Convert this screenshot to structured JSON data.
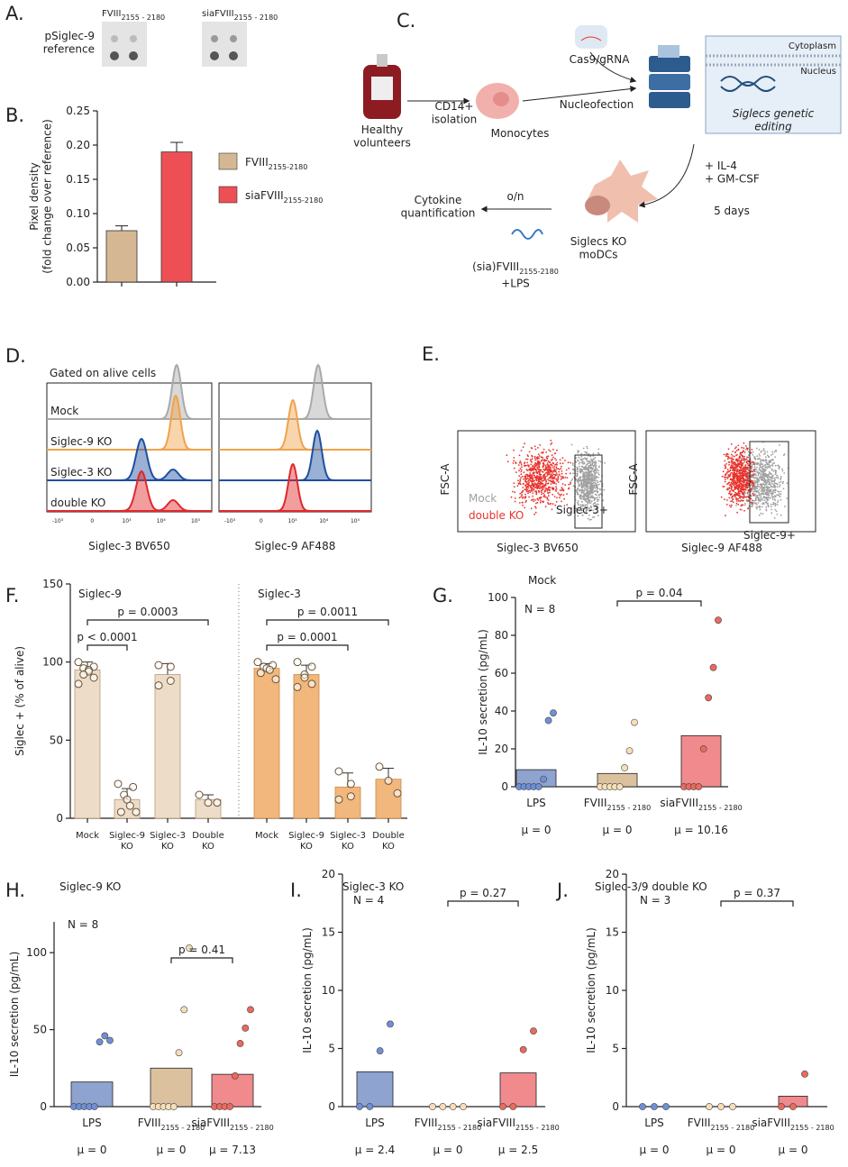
{
  "panel_labels": [
    "A.",
    "B.",
    "C.",
    "D.",
    "E.",
    "F.",
    "G.",
    "H.",
    "I.",
    "J."
  ],
  "blot": {
    "columns": [
      {
        "text": "FVIII",
        "sub": "2155 - 2180"
      },
      {
        "text": "siaFVIII",
        "sub": "2155 - 2180"
      }
    ],
    "rows": [
      "pSiglec-9",
      "reference"
    ]
  },
  "diagram": {
    "healthy": [
      "Healthy",
      "volunteers"
    ],
    "isolation": [
      "CD14+",
      "isolation"
    ],
    "monocytes": "Monocytes",
    "cas9": "Cas9/gRNA",
    "nucleofection": "Nucleofection",
    "cytoplasm": "Cytoplasm",
    "nucleus": "Nucleus",
    "editing": [
      "Siglecs genetic",
      "editing"
    ],
    "cytokines": [
      "+ IL-4",
      "+ GM-CSF"
    ],
    "duration": "5 days",
    "modcs": [
      "Siglecs KO",
      "moDCs"
    ],
    "overnight": "o/n",
    "quantification": [
      "Cytokine",
      "quantification"
    ],
    "stimulus": [
      {
        "text": "(sia)FVIII",
        "sub": "2155-2180"
      },
      "+LPS"
    ]
  },
  "histograms": {
    "title": "Gated on alive cells",
    "rows": [
      "Mock",
      "Siglec-9 KO",
      "Siglec-3 KO",
      "double KO"
    ],
    "x_labels": [
      "Siglec-3 BV650",
      "Siglec-9 AF488"
    ],
    "ticks": [
      "-10³",
      "0",
      "10³",
      "10⁴",
      "10⁵"
    ],
    "colors": [
      "#a9a9a9",
      "#f0a24a",
      "#1f4fa0",
      "#e0282b"
    ]
  },
  "flow": {
    "y_label": "FSC-A",
    "legend": [
      "Mock",
      "double KO"
    ],
    "legend_colors": [
      "#a0a0a0",
      "#e8332d"
    ],
    "gates": [
      "Siglec-3+",
      "Siglec-9+"
    ],
    "x_labels": [
      "Siglec-3 BV650",
      "Siglec-9 AF488"
    ]
  },
  "chart_data": [
    {
      "type": "bar",
      "y_label": [
        "Pixel density",
        "(fold change over reference)"
      ],
      "categories": [
        {
          "text": "FVIII",
          "sub": "2155-2180"
        },
        {
          "text": "siaFVIII",
          "sub": "2155-2180"
        }
      ],
      "values": [
        0.075,
        0.19
      ],
      "errors": [
        0.007,
        0.014
      ],
      "colors": [
        "#d5b893",
        "#ee4f55"
      ],
      "legend": true,
      "ylim": [
        0,
        0.25
      ],
      "yticks": [
        {
          "value": 0,
          "label": "0.00"
        },
        0.05,
        {
          "value": 0.1,
          "label": "0.10"
        },
        0.15,
        {
          "value": 0.2,
          "label": "0.20"
        },
        0.25
      ]
    },
    {
      "type": "grouped_bar",
      "y_label": "Siglec + (% of alive)",
      "ylim": [
        0,
        150
      ],
      "yticks": [
        0,
        50,
        100,
        150
      ],
      "groups": [
        {
          "name": "Siglec-9",
          "color": "#ecdcc8",
          "edge": "#b99a78",
          "categories": [
            [
              "Mock"
            ],
            [
              "Siglec-9",
              "KO"
            ],
            [
              "Siglec-3",
              "KO"
            ],
            [
              "Double",
              "KO"
            ]
          ],
          "values": [
            95,
            12,
            92,
            12
          ],
          "errors": [
            5,
            7,
            7,
            3
          ],
          "points": [
            [
              100,
              97,
              96,
              95,
              94,
              92,
              90,
              86
            ],
            [
              22,
              20,
              15,
              12,
              8,
              4,
              4
            ],
            [
              98,
              97,
              88,
              85
            ],
            [
              15,
              10,
              10
            ]
          ],
          "brackets": [
            {
              "from": 0,
              "to": 1,
              "label": "p < 0.0001"
            },
            {
              "from": 0,
              "to": 3,
              "label": "p = 0.0003"
            }
          ]
        },
        {
          "name": "Siglec-3",
          "color": "#f2b77c",
          "edge": "#c98a48",
          "categories": [
            [
              "Mock"
            ],
            [
              "Siglec-9",
              "KO"
            ],
            [
              "Siglec-3",
              "KO"
            ],
            [
              "Double",
              "KO"
            ]
          ],
          "values": [
            96,
            92,
            20,
            25
          ],
          "errors": [
            3,
            6,
            9,
            7
          ],
          "points": [
            [
              100,
              98,
              97,
              96,
              95,
              93,
              89
            ],
            [
              100,
              97,
              92,
              90,
              86,
              84
            ],
            [
              30,
              22,
              14,
              12
            ],
            [
              33,
              24,
              16
            ]
          ],
          "brackets": [
            {
              "from": 0,
              "to": 2,
              "label": "p = 0.0001"
            },
            {
              "from": 0,
              "to": 3,
              "label": "p = 0.0011"
            }
          ]
        }
      ]
    },
    {
      "type": "dotbar",
      "title": "Mock",
      "y_label": "IL-10 secretion (pg/mL)",
      "n_label": "N = 8",
      "ylim": [
        0,
        100
      ],
      "yticks": [
        0,
        20,
        40,
        60,
        80,
        100
      ],
      "categories": [
        "LPS",
        {
          "text": "FVIII",
          "sub": "2155 - 2180"
        },
        {
          "text": "siaFVIII",
          "sub": "2155 - 2180"
        }
      ],
      "values": [
        9,
        7,
        27
      ],
      "points": [
        [
          0,
          0,
          0,
          0,
          0,
          4,
          35,
          39
        ],
        [
          0,
          0,
          0,
          0,
          0,
          10,
          19,
          34
        ],
        [
          0,
          0,
          0,
          0,
          20,
          47,
          63,
          88
        ]
      ],
      "mu": [
        "μ = 0",
        "μ = 0",
        "μ = 10.16"
      ],
      "bar_colors": [
        "#8ea3cf",
        "#dcc19f",
        "#f08a8d"
      ],
      "point_colors": [
        "#6f8fd6",
        "#f6dfb8",
        "#ea6a5e"
      ],
      "brackets": [
        {
          "from": 1,
          "to": 2,
          "label": "p = 0.04"
        }
      ]
    },
    {
      "type": "dotbar",
      "title": "Siglec-9 KO",
      "y_label": "IL-10 secretion (pg/mL)",
      "n_label": "N = 8",
      "ylim": [
        0,
        120
      ],
      "yticks": [
        0,
        50,
        100
      ],
      "categories": [
        "LPS",
        {
          "text": "FVIII",
          "sub": "2155 - 2180"
        },
        {
          "text": "siaFVIII",
          "sub": "2155 - 2180"
        }
      ],
      "values": [
        16,
        25,
        21
      ],
      "points": [
        [
          0,
          0,
          0,
          0,
          0,
          42,
          46,
          43
        ],
        [
          0,
          0,
          0,
          0,
          0,
          35,
          63,
          103
        ],
        [
          0,
          0,
          0,
          0,
          20,
          41,
          51,
          63
        ]
      ],
      "mu": [
        "μ = 0",
        "μ = 0",
        "μ = 7.13"
      ],
      "bar_colors": [
        "#8ea3cf",
        "#dcc19f",
        "#f08a8d"
      ],
      "point_colors": [
        "#6f8fd6",
        "#f6dfb8",
        "#ea6a5e"
      ],
      "brackets": [
        {
          "from": 1,
          "to": 2,
          "label": "p = 0.41"
        }
      ]
    },
    {
      "type": "dotbar",
      "title": "Siglec-3 KO",
      "y_label": "IL-10 secretion (pg/mL)",
      "n_label": "N = 4",
      "ylim": [
        0,
        20
      ],
      "yticks": [
        0,
        5,
        10,
        15,
        20
      ],
      "categories": [
        "LPS",
        {
          "text": "FVIII",
          "sub": "2155 - 2180"
        },
        {
          "text": "siaFVIII",
          "sub": "2155 - 2180"
        }
      ],
      "values": [
        3,
        0,
        2.9
      ],
      "points": [
        [
          0,
          0,
          4.8,
          7.1
        ],
        [
          0,
          0,
          0,
          0
        ],
        [
          0,
          0,
          4.9,
          6.5
        ]
      ],
      "mu": [
        "μ = 2.4",
        "μ = 0",
        "μ = 2.5"
      ],
      "bar_colors": [
        "#8ea3cf",
        "#dcc19f",
        "#f08a8d"
      ],
      "point_colors": [
        "#6f8fd6",
        "#f6dfb8",
        "#ea6a5e"
      ],
      "brackets": [
        {
          "from": 1,
          "to": 2,
          "label": "p = 0.27"
        }
      ]
    },
    {
      "type": "dotbar",
      "title": "Siglec-3/9 double KO",
      "y_label": "IL-10 secretion (pg/mL)",
      "n_label": "N = 3",
      "ylim": [
        0,
        20
      ],
      "yticks": [
        0,
        5,
        10,
        15,
        20
      ],
      "categories": [
        "LPS",
        {
          "text": "FVIII",
          "sub": "2155 - 2180"
        },
        {
          "text": "siaFVIII",
          "sub": "2155 - 2180"
        }
      ],
      "values": [
        0,
        0,
        0.9
      ],
      "points": [
        [
          0,
          0,
          0
        ],
        [
          0,
          0,
          0
        ],
        [
          0,
          0,
          2.8
        ]
      ],
      "mu": [
        "μ = 0",
        "μ = 0",
        "μ = 0"
      ],
      "bar_colors": [
        "#8ea3cf",
        "#dcc19f",
        "#f08a8d"
      ],
      "point_colors": [
        "#6f8fd6",
        "#f6dfb8",
        "#ea6a5e"
      ],
      "brackets": [
        {
          "from": 1,
          "to": 2,
          "label": "p = 0.37"
        }
      ]
    }
  ]
}
